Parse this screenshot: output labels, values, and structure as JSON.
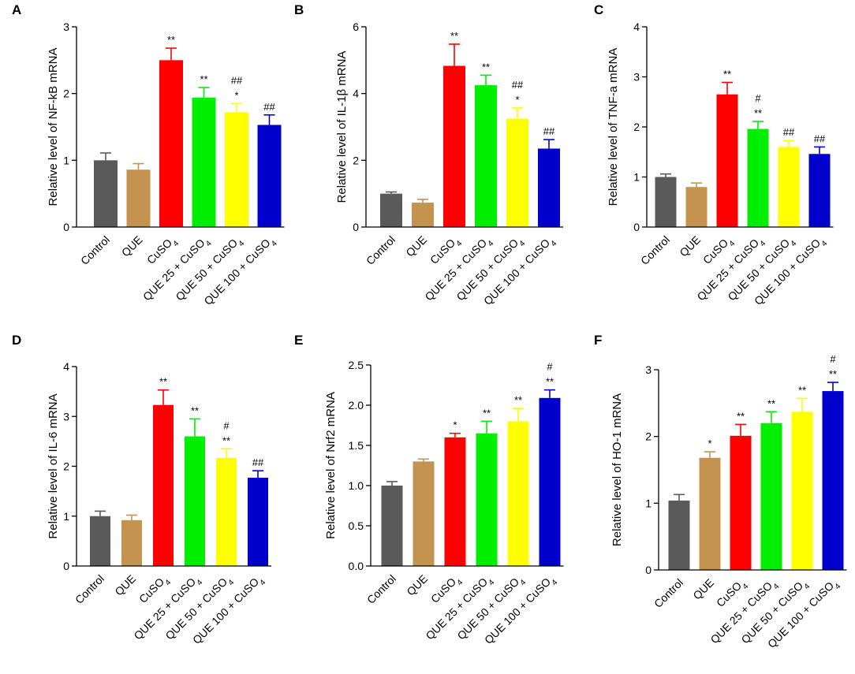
{
  "figure": {
    "colors": {
      "Control": "#5a5a5a",
      "QUE": "#c4934f",
      "CuSO4": "#ff0000",
      "QUE 25 + CuSO4": "#00ee00",
      "QUE 50 + CuSO4": "#ffff00",
      "QUE 100 + CuSO4": "#0000cc"
    }
  },
  "chart_data": [
    {
      "panel": "A",
      "type": "bar",
      "ylabel": "Relative level of NF-kB mRNA",
      "ylim": [
        0,
        3
      ],
      "yticks": [
        "0",
        "1",
        "2",
        "3"
      ],
      "categories": [
        "Control",
        "QUE",
        "CuSO4",
        "QUE 25 + CuSO4",
        "QUE 50 + CuSO4",
        "QUE 100 + CuSO4"
      ],
      "values": [
        1.0,
        0.86,
        2.5,
        1.94,
        1.72,
        1.53
      ],
      "errors": [
        0.11,
        0.09,
        0.18,
        0.15,
        0.13,
        0.15
      ],
      "annotations": [
        [],
        [],
        [
          "**"
        ],
        [
          "**"
        ],
        [
          "*",
          "##"
        ],
        [
          "##"
        ]
      ]
    },
    {
      "panel": "B",
      "type": "bar",
      "ylabel": "Relative level of IL-1β mRNA",
      "ylim": [
        0,
        6
      ],
      "yticks": [
        "0",
        "2",
        "4",
        "6"
      ],
      "categories": [
        "Control",
        "QUE",
        "CuSO4",
        "QUE 25 + CuSO4",
        "QUE 50 + CuSO4",
        "QUE 100 + CuSO4"
      ],
      "values": [
        1.0,
        0.73,
        4.83,
        4.25,
        3.25,
        2.35
      ],
      "errors": [
        0.05,
        0.1,
        0.65,
        0.3,
        0.32,
        0.27
      ],
      "annotations": [
        [],
        [],
        [
          "**"
        ],
        [
          "**"
        ],
        [
          "*",
          "##"
        ],
        [
          "##"
        ]
      ]
    },
    {
      "panel": "C",
      "type": "bar",
      "ylabel": "Relative level of TNF-a mRNA",
      "ylim": [
        0,
        4
      ],
      "yticks": [
        "0",
        "1",
        "2",
        "3",
        "4"
      ],
      "categories": [
        "Control",
        "QUE",
        "CuSO4",
        "QUE 25 + CuSO4",
        "QUE 50 + CuSO4",
        "QUE 100 + CuSO4"
      ],
      "values": [
        1.0,
        0.8,
        2.65,
        1.96,
        1.6,
        1.46
      ],
      "errors": [
        0.06,
        0.08,
        0.24,
        0.15,
        0.13,
        0.14
      ],
      "annotations": [
        [],
        [],
        [
          "**"
        ],
        [
          "**",
          "#"
        ],
        [
          "##"
        ],
        [
          "##"
        ]
      ]
    },
    {
      "panel": "D",
      "type": "bar",
      "ylabel": "Relative level of IL-6 mRNA",
      "ylim": [
        0,
        4
      ],
      "yticks": [
        "0",
        "1",
        "2",
        "3",
        "4"
      ],
      "categories": [
        "Control",
        "QUE",
        "CuSO4",
        "QUE 25 + CuSO4",
        "QUE 50 + CuSO4",
        "QUE 100 + CuSO4"
      ],
      "values": [
        1.0,
        0.92,
        3.23,
        2.6,
        2.17,
        1.77
      ],
      "errors": [
        0.1,
        0.1,
        0.3,
        0.35,
        0.18,
        0.14
      ],
      "annotations": [
        [],
        [],
        [
          "**"
        ],
        [
          "**"
        ],
        [
          "**",
          "#"
        ],
        [
          "##"
        ]
      ]
    },
    {
      "panel": "E",
      "type": "bar",
      "ylabel": "Relative level of Nrf2 mRNA",
      "ylim": [
        0,
        2.5
      ],
      "yticks": [
        "0.0",
        "0.5",
        "1.0",
        "1.5",
        "2.0",
        "2.5"
      ],
      "categories": [
        "Control",
        "QUE",
        "CuSO4",
        "QUE 25 + CuSO4",
        "QUE 50 + CuSO4",
        "QUE 100 + CuSO4"
      ],
      "values": [
        1.0,
        1.3,
        1.6,
        1.65,
        1.8,
        2.09
      ],
      "errors": [
        0.05,
        0.03,
        0.05,
        0.15,
        0.16,
        0.1
      ],
      "annotations": [
        [],
        [],
        [
          "*"
        ],
        [
          "**"
        ],
        [
          "**"
        ],
        [
          "**",
          "#"
        ]
      ]
    },
    {
      "panel": "F",
      "type": "bar",
      "ylabel": "Relative level of HO-1 mRNA",
      "ylim": [
        0,
        3
      ],
      "yticks": [
        "0",
        "1",
        "2",
        "3"
      ],
      "categories": [
        "Control",
        "QUE",
        "CuSO4",
        "QUE 25 + CuSO4",
        "QUE 50 + CuSO4",
        "QUE 100 + CuSO4"
      ],
      "values": [
        1.04,
        1.68,
        2.01,
        2.2,
        2.37,
        2.68
      ],
      "errors": [
        0.09,
        0.09,
        0.17,
        0.17,
        0.2,
        0.13
      ],
      "annotations": [
        [],
        [
          "*"
        ],
        [
          "**"
        ],
        [
          "**"
        ],
        [
          "**"
        ],
        [
          "**",
          "#"
        ]
      ]
    }
  ]
}
